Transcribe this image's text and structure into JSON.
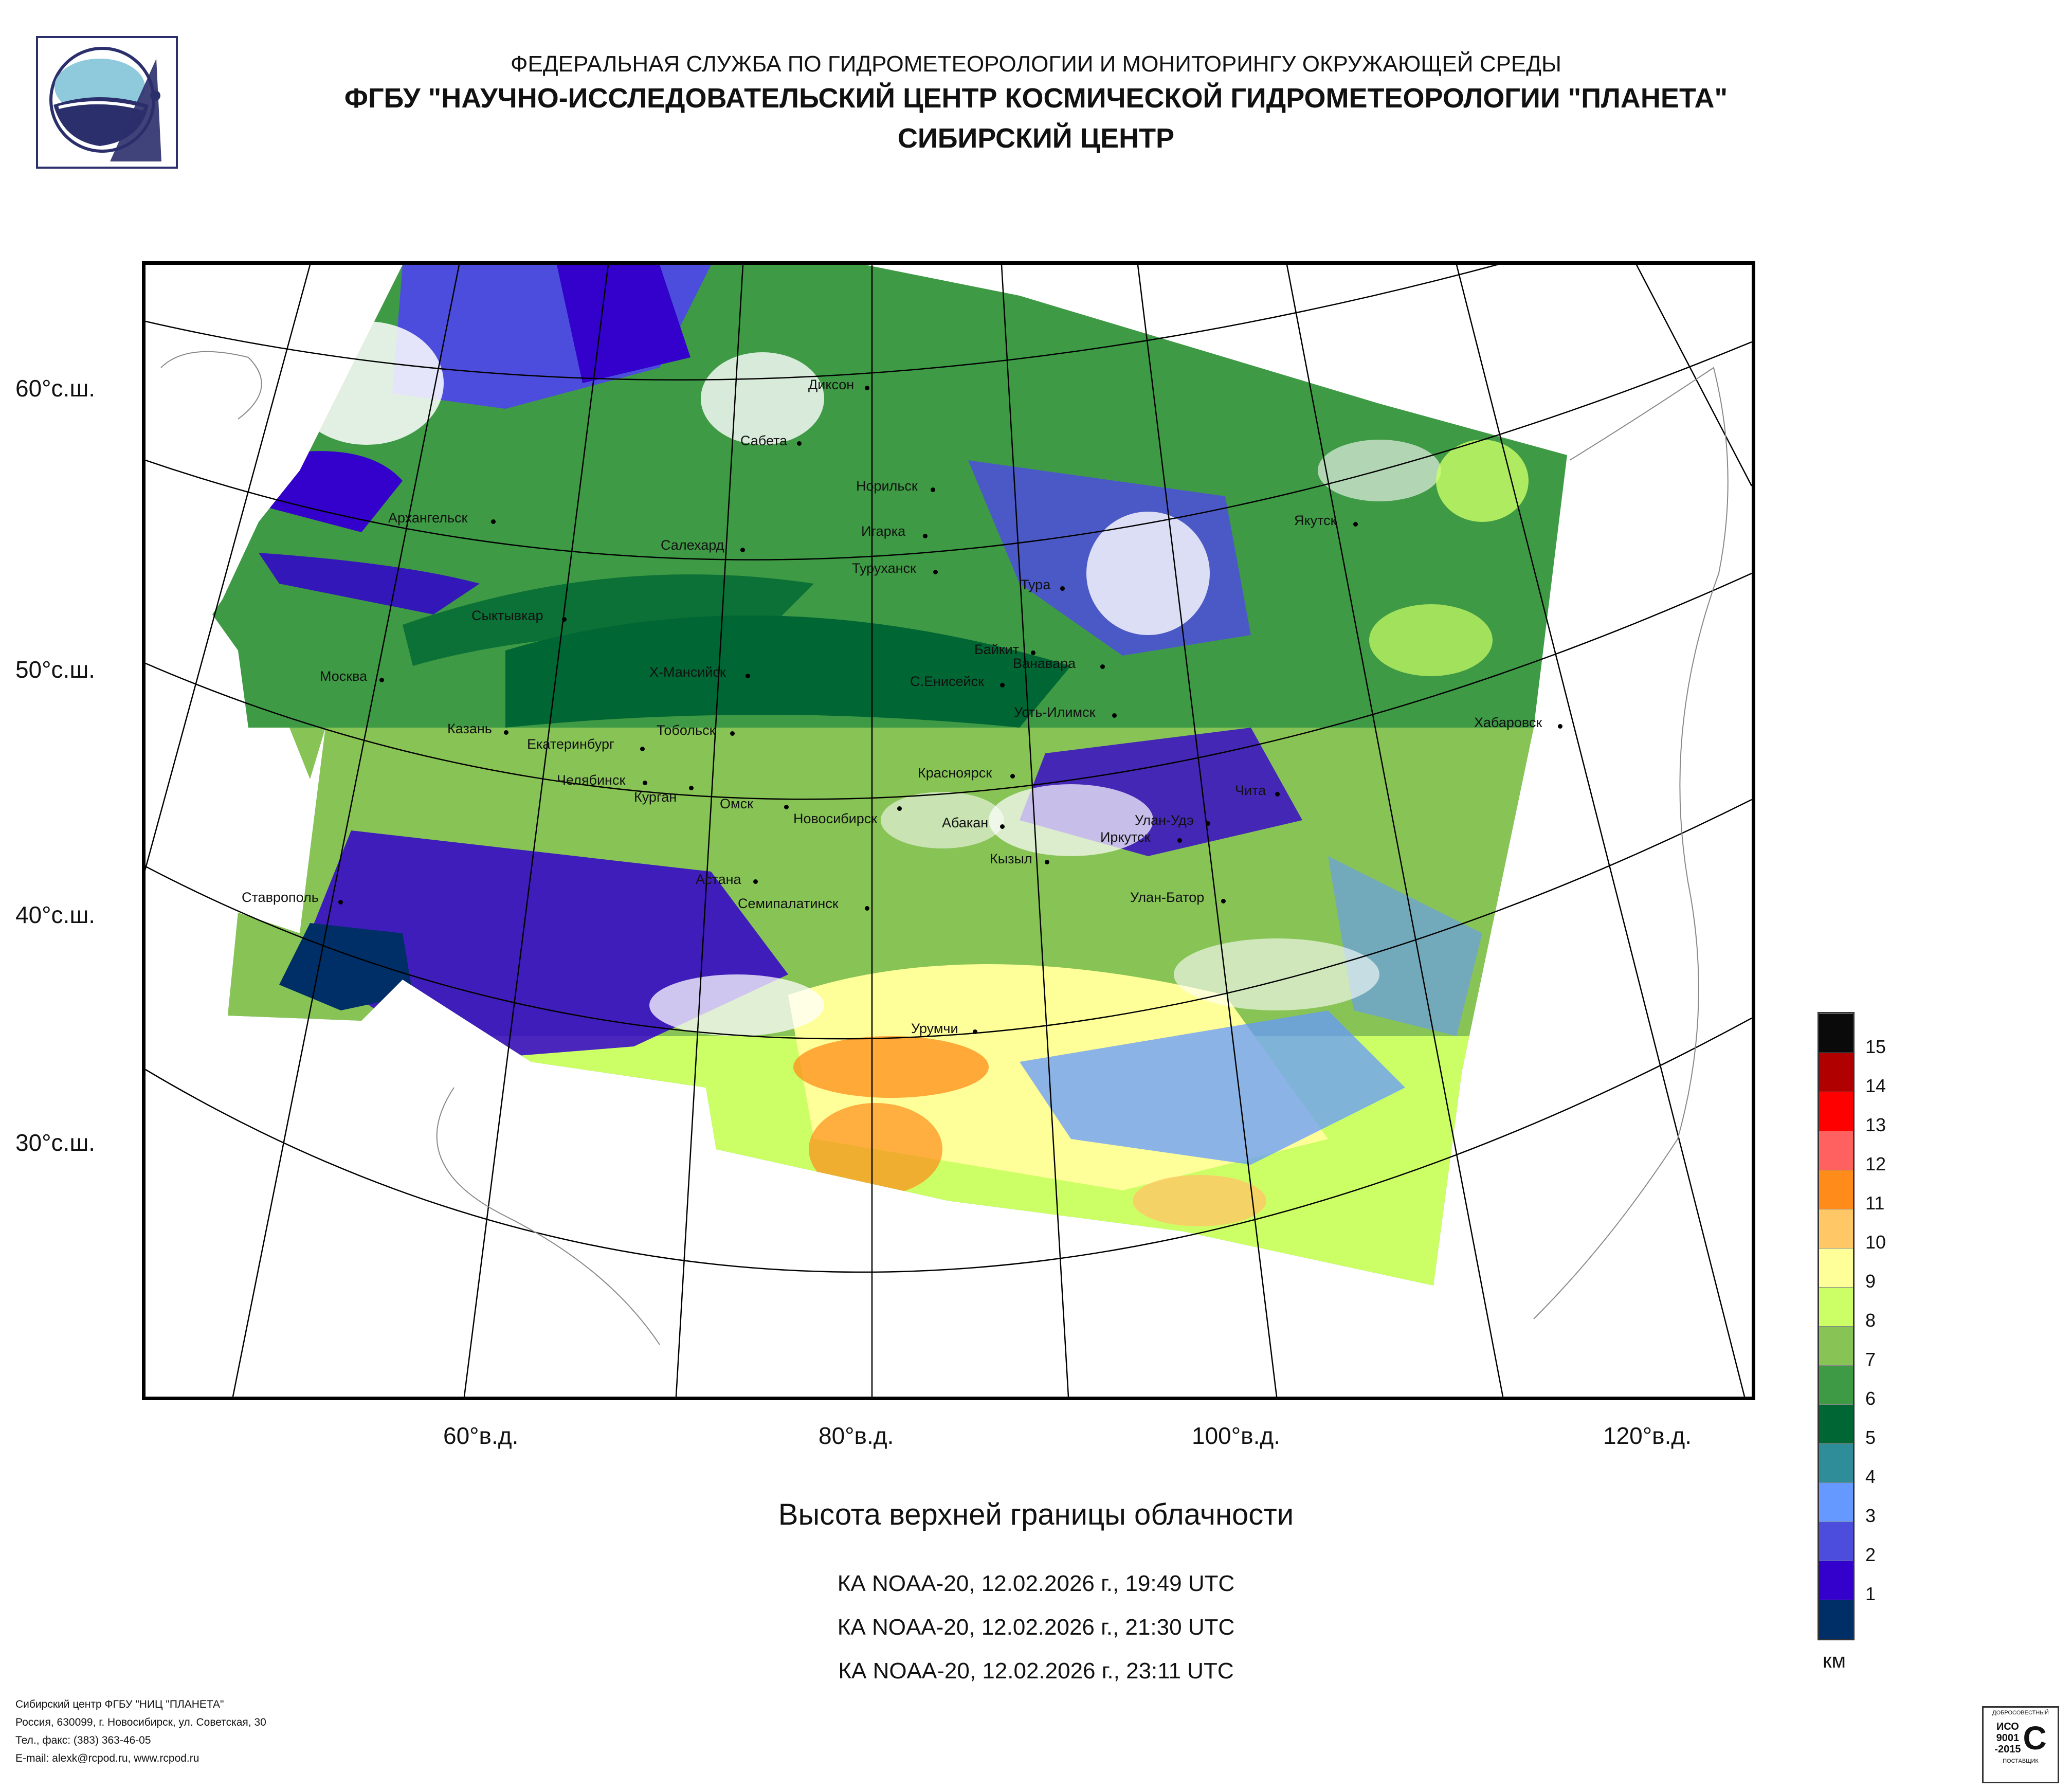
{
  "header": {
    "line1": "ФЕДЕРАЛЬНАЯ СЛУЖБА ПО ГИДРОМЕТЕОРОЛОГИИ И МОНИТОРИНГУ ОКРУЖАЮЩЕЙ СРЕДЫ",
    "line2": "ФГБУ \"НАУЧНО-ИССЛЕДОВАТЕЛЬСКИЙ ЦЕНТР КОСМИЧЕСКОЙ ГИДРОМЕТЕОРОЛОГИИ \"ПЛАНЕТА\"",
    "line3": "СИБИРСКИЙ ЦЕНТР"
  },
  "latitudes": [
    "60°с.ш.",
    "50°с.ш.",
    "40°с.ш.",
    "30°с.ш."
  ],
  "longitudes": [
    "60°в.д.",
    "80°в.д.",
    "100°в.д.",
    "120°в.д."
  ],
  "cities": [
    "Диксон",
    "Сабета",
    "Норильск",
    "Архангельск",
    "Салехард",
    "Игарка",
    "Туруханск",
    "Якутск",
    "Тура",
    "Сыктывкар",
    "Байкит",
    "Ванавара",
    "Москва",
    "Х-Мансийск",
    "С.Енисейск",
    "Усть-Илимск",
    "Хабаровск",
    "Казань",
    "Тобольск",
    "Екатеринбург",
    "Челябинск",
    "Курган",
    "Красноярск",
    "Чита",
    "Омск",
    "Новосибирск",
    "Абакан",
    "Улан-Удэ",
    "Иркутск",
    "Кызыл",
    "Ставрополь",
    "Астана",
    "Семипалатинск",
    "Улан-Батор",
    "Урумчи"
  ],
  "caption": "Высота верхней границы облачности",
  "passes": [
    "КА NOAA-20, 12.02.2026 г., 19:49 UTC",
    "КА NOAA-20, 12.02.2026 г., 21:30 UTC",
    "КА NOAA-20, 12.02.2026 г., 23:11 UTC"
  ],
  "legend": {
    "unit": "км",
    "levels": [
      "15",
      "14",
      "13",
      "12",
      "11",
      "10",
      "9",
      "8",
      "7",
      "6",
      "5",
      "4",
      "3",
      "2",
      "1"
    ],
    "colors": [
      "#0a0a0a",
      "#b00000",
      "#ff0000",
      "#ff6060",
      "#ff8c1a",
      "#ffc766",
      "#ffff99",
      "#ccff66",
      "#88c455",
      "#3f9a45",
      "#006633",
      "#2f8c99",
      "#6699ff",
      "#4d4ddd",
      "#3300cc",
      "#002e66"
    ]
  },
  "footer": {
    "line1": "Сибирский центр ФГБУ \"НИЦ \"ПЛАНЕТА\"",
    "line2": "Россия, 630099, г. Новосибирск, ул. Советская, 30",
    "line3": "Тел., факс: (383) 363-46-05",
    "line4": "E-mail: alexk@rcpod.ru, www.rcpod.ru"
  },
  "iso": {
    "top": "ДОБРОСОВЕСТНЫЙ",
    "mid1": "ИСО",
    "mid2": "9001",
    "mid3": "-2015",
    "bottom": "ПОСТАВЩИК"
  }
}
